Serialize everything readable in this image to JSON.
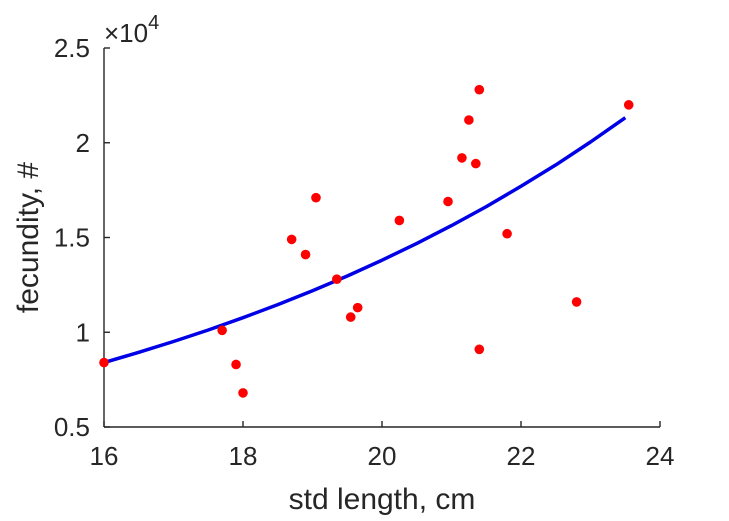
{
  "chart_data": {
    "type": "scatter",
    "title": "",
    "xlabel": "std length, cm",
    "ylabel": "fecundity, #",
    "xlim": [
      16,
      24
    ],
    "ylim": [
      5000,
      25000
    ],
    "y_scale_exponent_label": "×10",
    "y_scale_exponent": "4",
    "x_ticks": [
      16,
      18,
      20,
      22,
      24
    ],
    "x_tick_labels": [
      "16",
      "18",
      "20",
      "22",
      "24"
    ],
    "y_ticks": [
      5000,
      10000,
      15000,
      20000,
      25000
    ],
    "y_tick_labels": [
      "0.5",
      "1",
      "1.5",
      "2",
      "2.5"
    ],
    "grid": false,
    "box": false,
    "series": [
      {
        "kind": "scatter",
        "color": "#ff0000",
        "points": [
          {
            "x": 16.0,
            "y": 8400
          },
          {
            "x": 17.7,
            "y": 10100
          },
          {
            "x": 17.9,
            "y": 8300
          },
          {
            "x": 18.0,
            "y": 6800
          },
          {
            "x": 18.7,
            "y": 14900
          },
          {
            "x": 18.9,
            "y": 14100
          },
          {
            "x": 19.05,
            "y": 17100
          },
          {
            "x": 19.35,
            "y": 12800
          },
          {
            "x": 19.55,
            "y": 10800
          },
          {
            "x": 19.65,
            "y": 11300
          },
          {
            "x": 20.25,
            "y": 15900
          },
          {
            "x": 20.95,
            "y": 16900
          },
          {
            "x": 21.15,
            "y": 19200
          },
          {
            "x": 21.25,
            "y": 21200
          },
          {
            "x": 21.35,
            "y": 18900
          },
          {
            "x": 21.4,
            "y": 22800
          },
          {
            "x": 21.4,
            "y": 9100
          },
          {
            "x": 21.8,
            "y": 15200
          },
          {
            "x": 22.8,
            "y": 11600
          },
          {
            "x": 23.55,
            "y": 22000
          }
        ]
      },
      {
        "kind": "line",
        "color": "#0000e6",
        "x": [
          16.0,
          16.5,
          17.0,
          17.5,
          18.0,
          18.5,
          19.0,
          19.5,
          20.0,
          20.5,
          21.0,
          21.5,
          22.0,
          22.5,
          23.0,
          23.5
        ],
        "y": [
          8400,
          8940,
          9510,
          10120,
          10770,
          11460,
          12190,
          12970,
          13800,
          14690,
          15630,
          16630,
          17700,
          18830,
          20040,
          21320
        ]
      }
    ]
  }
}
